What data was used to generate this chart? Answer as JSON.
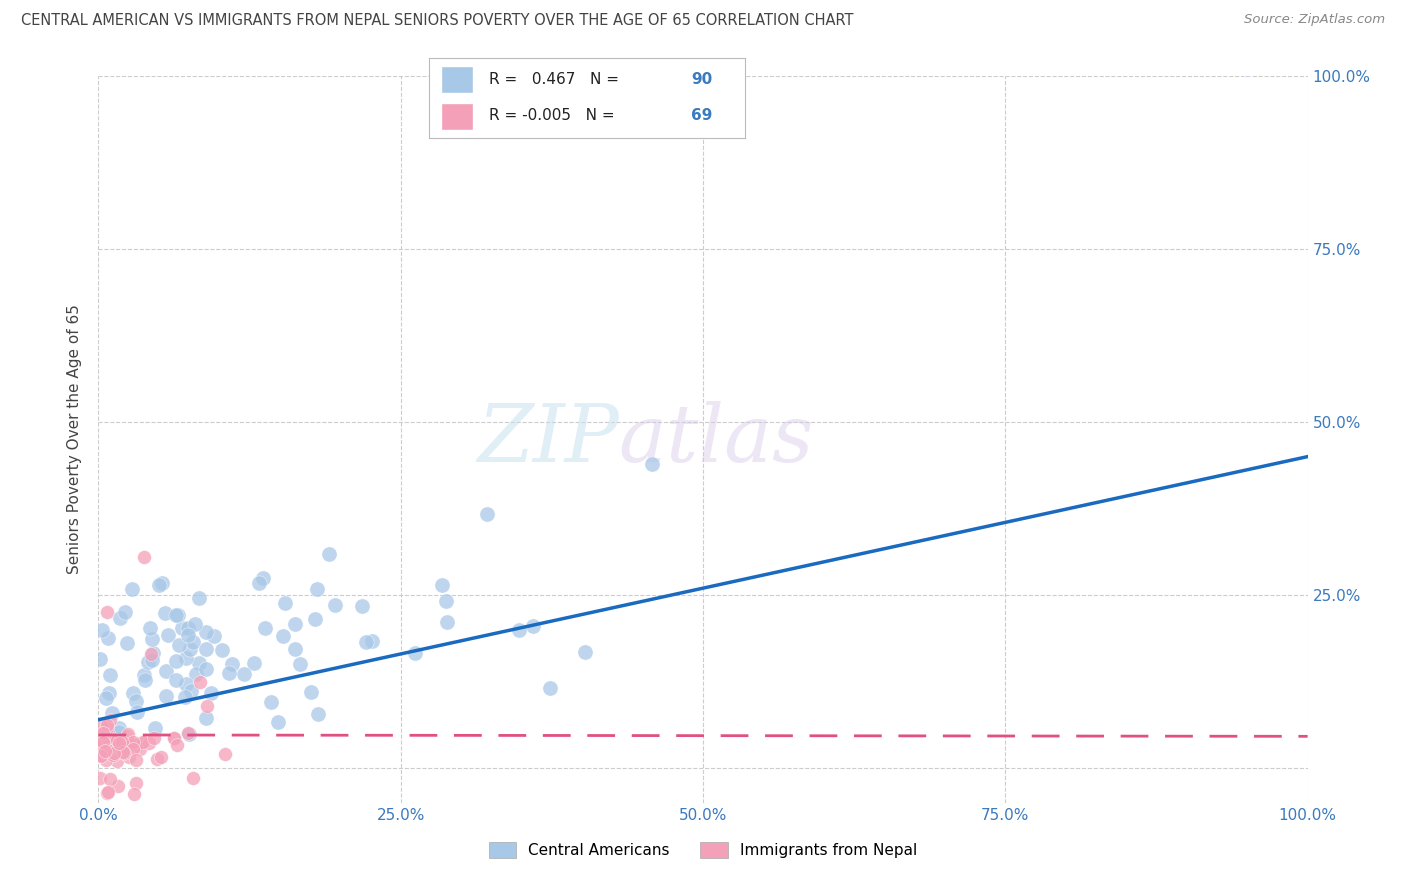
{
  "title": "CENTRAL AMERICAN VS IMMIGRANTS FROM NEPAL SENIORS POVERTY OVER THE AGE OF 65 CORRELATION CHART",
  "source": "Source: ZipAtlas.com",
  "ylabel": "Seniors Poverty Over the Age of 65",
  "watermark_zip": "ZIP",
  "watermark_atlas": "atlas",
  "blue_R": 0.467,
  "blue_N": 90,
  "pink_R": -0.005,
  "pink_N": 69,
  "blue_color": "#a8c8e8",
  "pink_color": "#f4a0b8",
  "blue_line_color": "#1a6bbf",
  "pink_line_color": "#e05080",
  "axis_tick_color": "#3a7abf",
  "title_color": "#444444",
  "grid_color": "#cccccc",
  "background_color": "#ffffff",
  "legend_label_blue": "Central Americans",
  "legend_label_pink": "Immigrants from Nepal",
  "xlim": [
    0.0,
    1.0
  ],
  "ylim": [
    -0.05,
    1.0
  ],
  "xticks": [
    0.0,
    0.25,
    0.5,
    0.75,
    1.0
  ],
  "yticks": [
    0.0,
    0.25,
    0.5,
    0.75,
    1.0
  ],
  "xtick_labels": [
    "0.0%",
    "25.0%",
    "50.0%",
    "75.0%",
    "100.0%"
  ],
  "right_ytick_labels": [
    "",
    "25.0%",
    "50.0%",
    "75.0%",
    "100.0%"
  ],
  "blue_line_x": [
    0.0,
    1.0
  ],
  "blue_line_y": [
    0.07,
    0.45
  ],
  "pink_line_x": [
    0.0,
    1.0
  ],
  "pink_line_y": [
    0.048,
    0.046
  ]
}
